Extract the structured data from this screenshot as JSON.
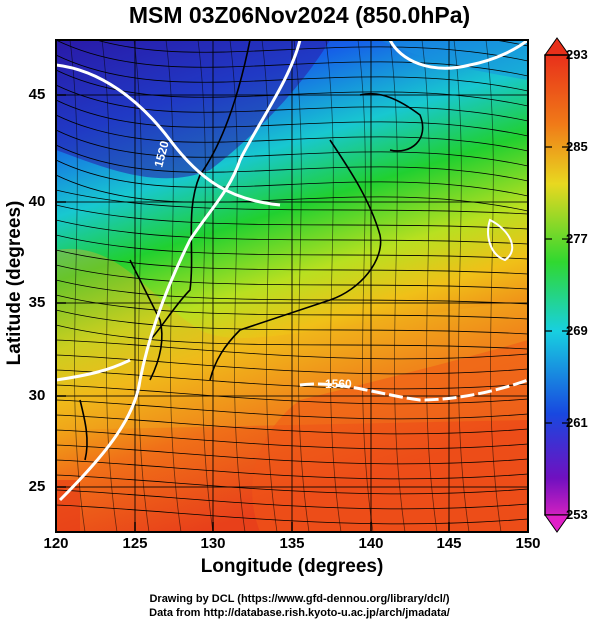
{
  "title": "MSM 03Z06Nov2024 (850.0hPa)",
  "x_axis": {
    "label": "Longitude (degrees)",
    "ticks": [
      "120",
      "125",
      "130",
      "135",
      "140",
      "145",
      "150"
    ]
  },
  "y_axis": {
    "label": "Latitude  (degrees)",
    "ticks": [
      "45",
      "40",
      "35",
      "30",
      "25"
    ]
  },
  "colorbar": {
    "ticks": [
      "293",
      "285",
      "277",
      "269",
      "261",
      "253"
    ],
    "min": 253,
    "max": 293
  },
  "contour_labels": [
    "1520",
    "1560"
  ],
  "credits": {
    "line1": "Drawing by DCL (https://www.gfd-dennou.org/library/dcl/)",
    "line2": "Data from http://database.rish.kyoto-u.ac.jp/arch/jmadata/"
  },
  "colors": {
    "cold": "#3a1fb0",
    "cool": "#1e78e8",
    "mid": "#2ad84a",
    "warm": "#e8e020",
    "hot": "#f0641a",
    "contour": "#ffffff"
  }
}
